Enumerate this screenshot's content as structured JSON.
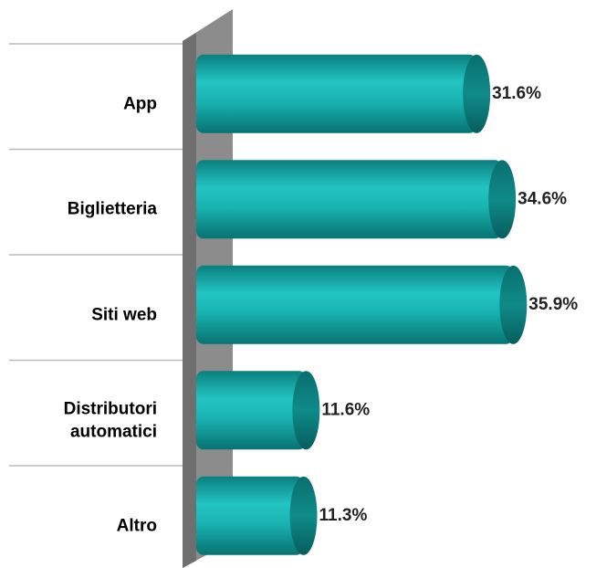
{
  "chart_data": {
    "type": "bar",
    "orientation": "horizontal",
    "categories": [
      "App",
      "Biglietteria",
      "Siti web",
      "Distributori automatici",
      "Altro"
    ],
    "values": [
      31.6,
      34.6,
      35.9,
      11.6,
      11.3
    ],
    "value_labels": [
      "31.6%",
      "34.6%",
      "35.9%",
      "11.6%",
      "11.3%"
    ],
    "color": "#14a7a7"
  }
}
